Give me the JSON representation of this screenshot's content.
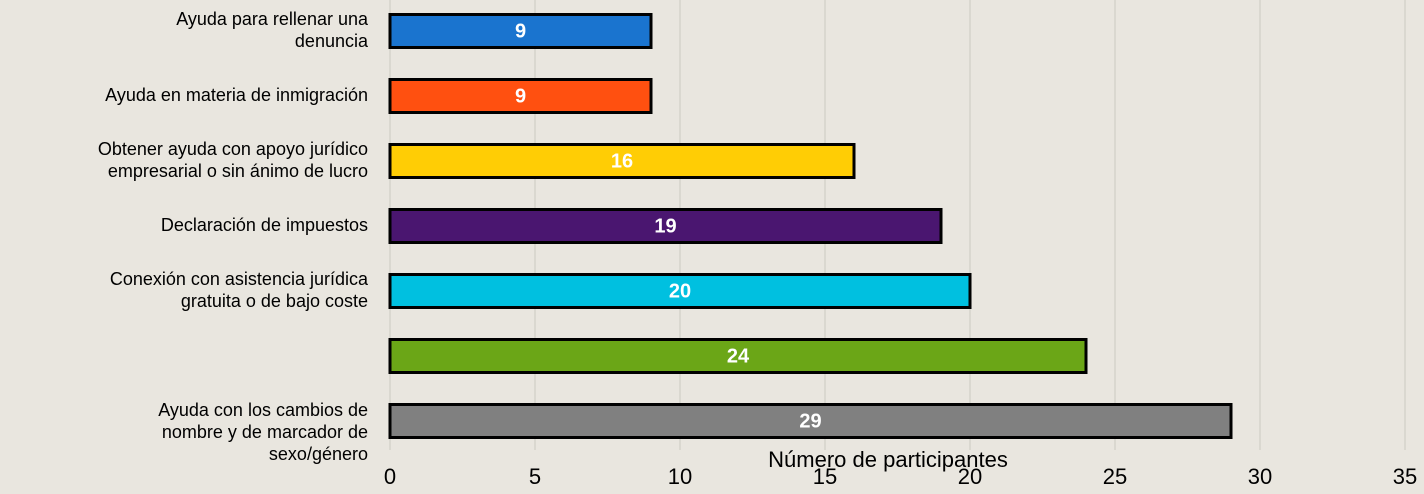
{
  "chart_data": {
    "type": "barh",
    "categories": [
      "Ayuda para rellenar una\ndenuncia",
      "Ayuda en materia de inmigración",
      "Obtener ayuda con apoyo jurídico\nempresarial o sin ánimo de lucro",
      "Declaración de impuestos",
      "Conexión con asistencia jurídica\ngratuita o de bajo coste",
      null,
      "Ayuda con los cambios de\nnombre y de marcador de\nsexo/género"
    ],
    "values": [
      9,
      9,
      16,
      19,
      20,
      24,
      29
    ],
    "colors": [
      "#1a74cf",
      "#ff5010",
      "#ffcd05",
      "#4a1670",
      "#00c0e0",
      "#6ba617",
      "#808080"
    ],
    "xlabel": "Número de participantes",
    "xlim": [
      0,
      35
    ],
    "xticks": [
      0,
      5,
      10,
      15,
      20,
      25,
      30,
      35
    ],
    "grid": true
  }
}
